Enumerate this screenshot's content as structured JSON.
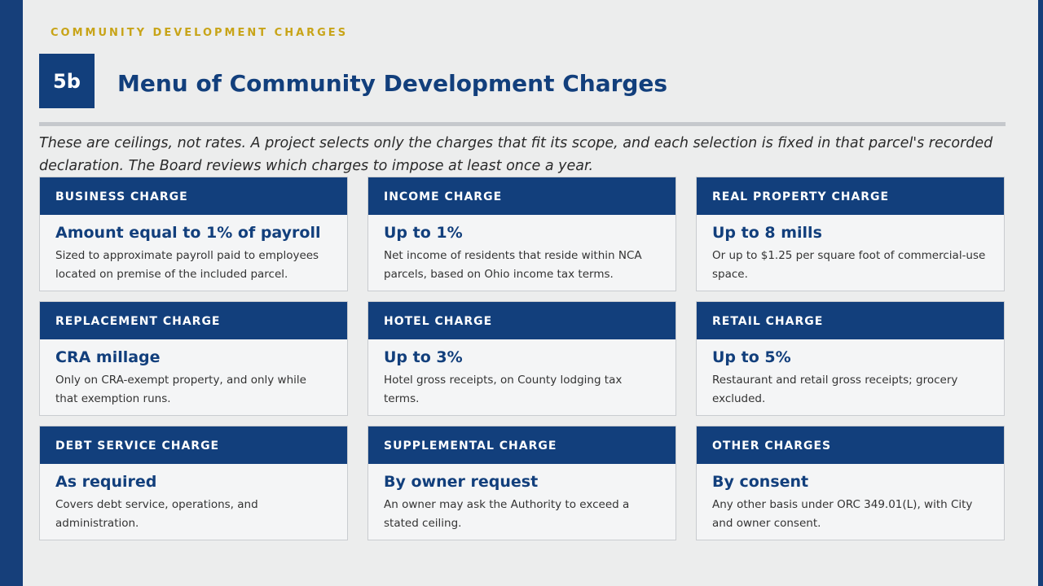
{
  "header": {
    "kicker": "COMMUNITY DEVELOPMENT CHARGES",
    "badge": "5b",
    "title": "Menu of Community Development Charges"
  },
  "intro": "These are ceilings, not rates. A project selects only the charges that fit its scope, and each selection is fixed in that parcel's recorded declaration. The Board reviews which charges to impose at least once a year.",
  "cards": [
    {
      "heading": "BUSINESS CHARGE",
      "amount": "Amount equal to 1% of payroll",
      "description": "Sized to approximate payroll paid to employees located on premise of the included parcel."
    },
    {
      "heading": "INCOME CHARGE",
      "amount": "Up to 1%",
      "description": "Net income of residents that reside within NCA parcels, based on Ohio income tax terms."
    },
    {
      "heading": "REAL PROPERTY CHARGE",
      "amount": "Up to 8 mills",
      "description": "Or up to $1.25 per square foot of commercial-use space."
    },
    {
      "heading": "REPLACEMENT CHARGE",
      "amount": "CRA millage",
      "description": "Only on CRA-exempt property, and only while that exemption runs."
    },
    {
      "heading": "HOTEL CHARGE",
      "amount": "Up to 3%",
      "description": "Hotel gross receipts, on County lodging tax terms."
    },
    {
      "heading": "RETAIL CHARGE",
      "amount": "Up to 5%",
      "description": "Restaurant and retail gross receipts; grocery excluded."
    },
    {
      "heading": "DEBT SERVICE CHARGE",
      "amount": "As required",
      "description": "Covers debt service, operations, and administration."
    },
    {
      "heading": "SUPPLEMENTAL CHARGE",
      "amount": "By owner request",
      "description": "An owner may ask the Authority to exceed a stated ceiling."
    },
    {
      "heading": "OTHER CHARGES",
      "amount": "By consent",
      "description": "Any other basis under ORC 349.01(L), with City and owner consent."
    }
  ]
}
